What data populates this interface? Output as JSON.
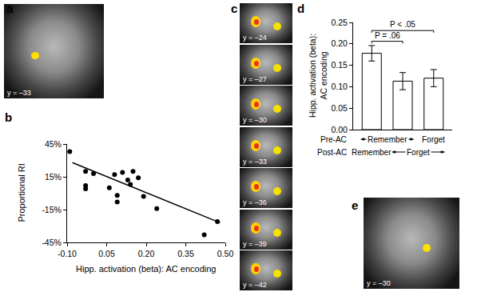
{
  "figure": {
    "panel_letters": [
      "a",
      "b",
      "c",
      "d",
      "e"
    ],
    "brain_slices": [
      {
        "panel": "a",
        "labels": [
          "y = –33"
        ]
      },
      {
        "panel": "c",
        "labels": [
          "y = –24",
          "y = –27",
          "y = –30",
          "y = –33",
          "y = –36",
          "y = –39",
          "y = –42"
        ]
      },
      {
        "panel": "e",
        "labels": [
          "y = –30"
        ]
      }
    ]
  },
  "chart_data": [
    {
      "type": "scatter",
      "x_label": "Hipp. activation (beta): AC encoding",
      "y_label": "Proportional RI",
      "xlim": [
        -0.1,
        0.5
      ],
      "xticks": [
        {
          "value": -0.1,
          "label": "-0.10"
        },
        {
          "value": 0.05,
          "label": "0.05"
        },
        {
          "value": 0.2,
          "label": "0.20"
        },
        {
          "value": 0.35,
          "label": "0.35"
        },
        {
          "value": 0.5,
          "label": "0.50"
        }
      ],
      "ylim": [
        -45,
        45
      ],
      "yticks": [
        {
          "value": -45,
          "label": "-45%"
        },
        {
          "value": -15,
          "label": "-15%"
        },
        {
          "value": 15,
          "label": "15%"
        },
        {
          "value": 45,
          "label": "45%"
        }
      ],
      "grid": false,
      "series": [
        {
          "type": "scatter",
          "color": "#000000",
          "marker": "circle",
          "x": [
            -0.09,
            -0.03,
            -0.03,
            -0.03,
            0.0,
            0.06,
            0.08,
            0.09,
            0.09,
            0.11,
            0.13,
            0.14,
            0.15,
            0.17,
            0.19,
            0.24,
            0.42,
            0.47
          ],
          "values": [
            38,
            20,
            7,
            4,
            18,
            5,
            17,
            -2,
            -8,
            19,
            12,
            8,
            20,
            14,
            -3,
            -14,
            -38,
            -26
          ]
        },
        {
          "type": "line",
          "color": "#000000",
          "line_style": "solid",
          "x": [
            -0.08,
            0.48
          ],
          "values": [
            28,
            -27
          ]
        }
      ]
    },
    {
      "type": "bar",
      "y_label": "Hipp. activation (beta): AC encoding",
      "categories": [
        null,
        null,
        null
      ],
      "values": [
        0.178,
        0.113,
        0.12
      ],
      "errors": [
        0.018,
        0.02,
        0.02
      ],
      "color": "#ffffff",
      "ylim": [
        0,
        0.25
      ],
      "yticks": [
        {
          "value": 0,
          "label": "0.00"
        },
        {
          "value": 0.05,
          "label": "0.05"
        },
        {
          "value": 0.1,
          "label": "0.10"
        },
        {
          "value": 0.15,
          "label": "0.15"
        },
        {
          "value": 0.2,
          "label": "0.20"
        },
        {
          "value": 0.25,
          "label": "0.25"
        }
      ],
      "grid": false,
      "category_rows": [
        {
          "name": "Pre-AC",
          "groups": [
            {
              "label": "Remember",
              "from": 0,
              "to": 1
            },
            {
              "label": "Forget",
              "from": 2,
              "to": 2
            }
          ]
        },
        {
          "name": "Post-AC",
          "groups": [
            {
              "label": "Remember",
              "from": 0,
              "to": 0
            },
            {
              "label": "Forget",
              "from": 1,
              "to": 2
            }
          ]
        }
      ],
      "comparisons": [
        {
          "from": 0,
          "to": 1,
          "label": "P = .06"
        },
        {
          "from": 0,
          "to": 2,
          "label": "P < .05"
        }
      ]
    }
  ]
}
